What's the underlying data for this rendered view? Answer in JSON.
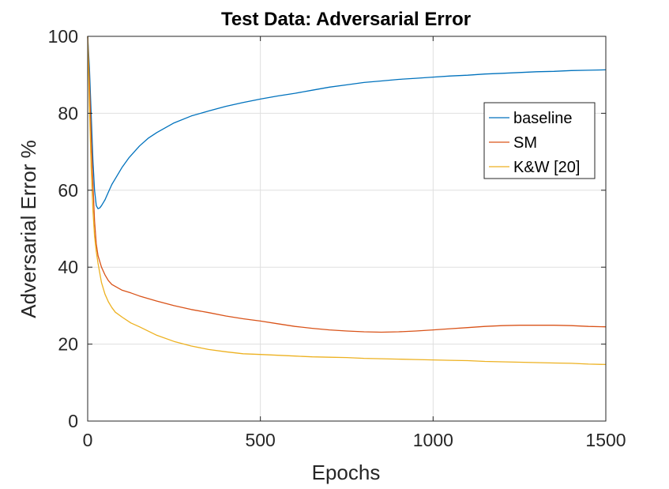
{
  "chart_data": {
    "type": "line",
    "title": "Test Data: Adversarial Error",
    "xlabel": "Epochs",
    "ylabel": "Adversarial Error %",
    "xlim": [
      0,
      1500
    ],
    "ylim": [
      0,
      100
    ],
    "xticks": [
      0,
      500,
      1000,
      1500
    ],
    "yticks": [
      0,
      20,
      40,
      60,
      80,
      100
    ],
    "grid": true,
    "legend_position": "top-right",
    "series": [
      {
        "name": "baseline",
        "color": "#0072BD",
        "x": [
          0,
          5,
          10,
          15,
          20,
          25,
          30,
          35,
          40,
          50,
          60,
          70,
          80,
          100,
          120,
          150,
          175,
          200,
          250,
          300,
          350,
          400,
          450,
          500,
          550,
          600,
          650,
          700,
          750,
          800,
          850,
          900,
          950,
          1000,
          1050,
          1100,
          1150,
          1200,
          1250,
          1300,
          1350,
          1400,
          1450,
          1500
        ],
        "y": [
          100,
          92,
          80,
          68,
          60,
          56,
          55.2,
          55.4,
          56,
          57.5,
          59.5,
          61.5,
          63,
          66,
          68.5,
          71.5,
          73.5,
          75,
          77.5,
          79.3,
          80.6,
          81.8,
          82.8,
          83.7,
          84.5,
          85.2,
          86,
          86.8,
          87.4,
          88,
          88.4,
          88.8,
          89.1,
          89.4,
          89.7,
          89.9,
          90.2,
          90.4,
          90.6,
          90.8,
          90.9,
          91.1,
          91.2,
          91.3
        ]
      },
      {
        "name": "SM",
        "color": "#D95319",
        "x": [
          0,
          5,
          10,
          15,
          20,
          25,
          30,
          40,
          50,
          60,
          70,
          80,
          100,
          125,
          150,
          200,
          250,
          300,
          350,
          400,
          450,
          500,
          550,
          600,
          650,
          700,
          750,
          800,
          850,
          900,
          950,
          1000,
          1050,
          1100,
          1150,
          1200,
          1250,
          1300,
          1350,
          1400,
          1450,
          1500
        ],
        "y": [
          100,
          88,
          74,
          62,
          52,
          46,
          43,
          40,
          38,
          36.5,
          35.5,
          35,
          34,
          33.3,
          32.5,
          31.2,
          30,
          29,
          28.2,
          27.3,
          26.6,
          26,
          25.3,
          24.6,
          24.1,
          23.7,
          23.4,
          23.2,
          23.1,
          23.2,
          23.4,
          23.7,
          24,
          24.3,
          24.6,
          24.8,
          24.9,
          24.9,
          24.9,
          24.8,
          24.6,
          24.5
        ]
      },
      {
        "name": "K&W [20]",
        "color": "#EDB120",
        "x": [
          0,
          5,
          10,
          15,
          20,
          25,
          30,
          40,
          50,
          60,
          70,
          80,
          100,
          125,
          150,
          200,
          250,
          300,
          350,
          400,
          450,
          500,
          550,
          600,
          650,
          700,
          750,
          800,
          850,
          900,
          950,
          1000,
          1050,
          1100,
          1150,
          1200,
          1250,
          1300,
          1350,
          1400,
          1450,
          1500
        ],
        "y": [
          100,
          82,
          66,
          55,
          48,
          44,
          41,
          36,
          33,
          31,
          29.5,
          28.3,
          27,
          25.5,
          24.5,
          22.3,
          20.7,
          19.5,
          18.6,
          18,
          17.5,
          17.3,
          17.1,
          16.9,
          16.7,
          16.6,
          16.5,
          16.3,
          16.2,
          16.1,
          16,
          15.9,
          15.8,
          15.7,
          15.5,
          15.4,
          15.3,
          15.2,
          15.1,
          15,
          14.8,
          14.7
        ]
      }
    ]
  }
}
